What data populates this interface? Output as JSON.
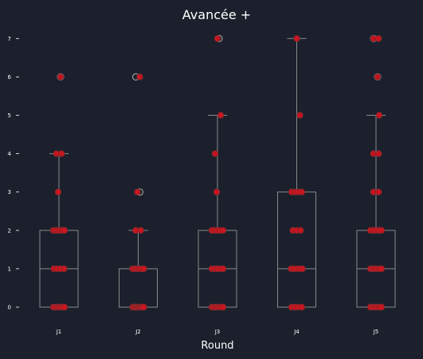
{
  "chart_data": {
    "type": "box",
    "title": "Avancée +",
    "xlabel": "Round",
    "ylabel": "",
    "categories": [
      "J1",
      "J2",
      "J3",
      "J4",
      "J5"
    ],
    "ylim": [
      -0.3,
      7.3
    ],
    "yticks": [
      0,
      1,
      2,
      3,
      4,
      5,
      6,
      7
    ],
    "grid": false,
    "colors": {
      "background": "#1b202c",
      "box_edge": "#8a8a8a",
      "point_fill": "#d0141e",
      "point_edge": "#7a2a2e",
      "outlier_edge": "#9a9a9a"
    },
    "boxes": [
      {
        "category": "J1",
        "q1": 0,
        "median": 1,
        "q3": 2,
        "whisker_low": 0,
        "whisker_high": 4,
        "outliers": [
          6
        ]
      },
      {
        "category": "J2",
        "q1": 0,
        "median": 0,
        "q3": 1,
        "whisker_low": 0,
        "whisker_high": 2,
        "outliers": [
          3,
          6
        ]
      },
      {
        "category": "J3",
        "q1": 0,
        "median": 1,
        "q3": 2,
        "whisker_low": 0,
        "whisker_high": 5,
        "outliers": [
          7
        ]
      },
      {
        "category": "J4",
        "q1": 0,
        "median": 1,
        "q3": 3,
        "whisker_low": 0,
        "whisker_high": 7,
        "outliers": []
      },
      {
        "category": "J5",
        "q1": 0,
        "median": 1,
        "q3": 2,
        "whisker_low": 0,
        "whisker_high": 5,
        "outliers": [
          6,
          7
        ]
      }
    ],
    "points": [
      {
        "category": "J1",
        "values": [
          0,
          0,
          0,
          0,
          0,
          0,
          0,
          1,
          1,
          1,
          1,
          2,
          2,
          2,
          2,
          2,
          2,
          3,
          4,
          4,
          6
        ]
      },
      {
        "category": "J2",
        "values": [
          0,
          0,
          0,
          0,
          0,
          0,
          0,
          0,
          0,
          0,
          1,
          1,
          1,
          1,
          1,
          1,
          2,
          2,
          3,
          6
        ]
      },
      {
        "category": "J3",
        "values": [
          0,
          0,
          0,
          0,
          0,
          0,
          0,
          1,
          1,
          1,
          1,
          1,
          2,
          2,
          2,
          2,
          2,
          3,
          4,
          5,
          7
        ]
      },
      {
        "category": "J4",
        "values": [
          0,
          0,
          0,
          0,
          1,
          1,
          1,
          1,
          1,
          2,
          2,
          2,
          3,
          3,
          3,
          3,
          5,
          7
        ]
      },
      {
        "category": "J5",
        "values": [
          0,
          0,
          0,
          0,
          0,
          0,
          1,
          1,
          1,
          1,
          1,
          1,
          2,
          2,
          2,
          2,
          2,
          3,
          3,
          4,
          4,
          5,
          6,
          7,
          7
        ]
      }
    ]
  }
}
